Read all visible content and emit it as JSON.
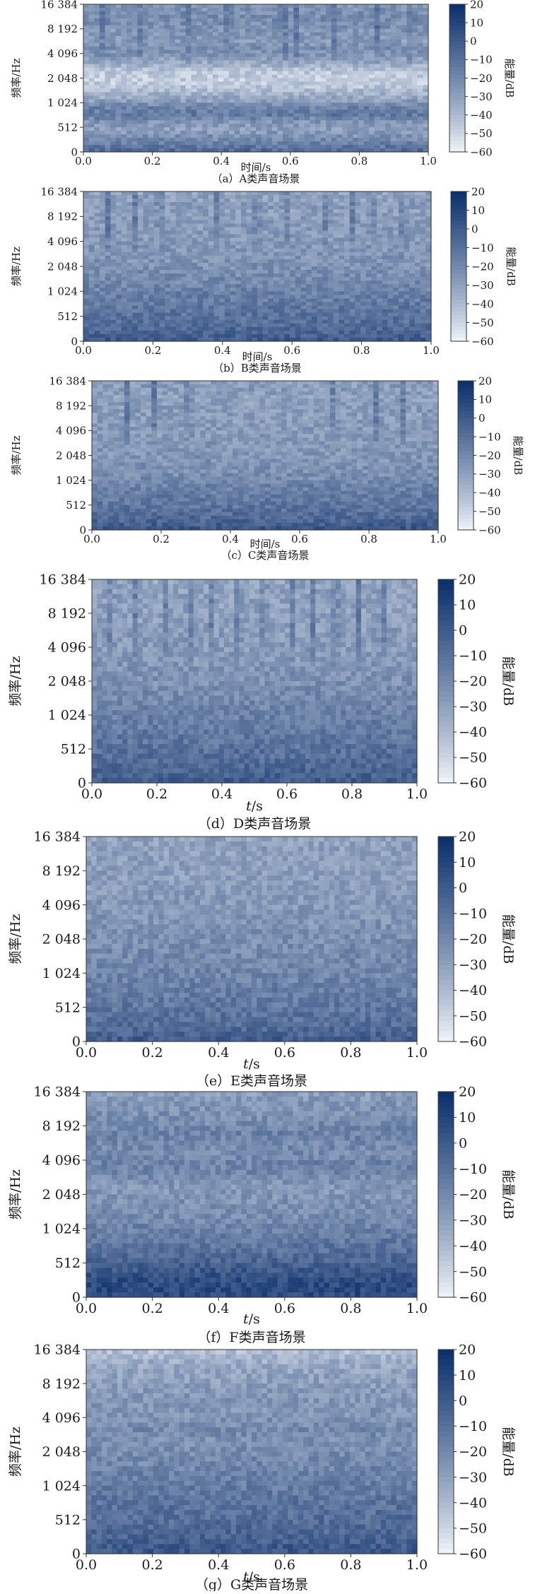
{
  "figure": {
    "panels": [
      {
        "id": "a",
        "caption": "（a）A类声音场景",
        "xlabel": "时间/s",
        "ylabel": "频率/Hz",
        "cbar_label": "能量/dB"
      },
      {
        "id": "b",
        "caption": "（b）B类声音场景",
        "xlabel": "时间/s",
        "ylabel": "频率/Hz",
        "cbar_label": "能量/dB"
      },
      {
        "id": "c",
        "caption": "（c）C类声音场景",
        "xlabel": "时间/s",
        "ylabel": "频率/Hz",
        "cbar_label": "能量/dB"
      },
      {
        "id": "d",
        "caption": "（d）D类声音场景",
        "xlabel": "t/s",
        "ylabel": "频率/Hz",
        "cbar_label": "能量/dB"
      },
      {
        "id": "e",
        "caption": "（e）E类声音场景",
        "xlabel": "t/s",
        "ylabel": "频率/Hz",
        "cbar_label": "能量/dB"
      },
      {
        "id": "f",
        "caption": "（f）F类声音场景",
        "xlabel": "t/s",
        "ylabel": "频率/Hz",
        "cbar_label": "能量/dB"
      },
      {
        "id": "g",
        "caption": "（g）G类声音场景",
        "xlabel": "t/s",
        "ylabel": "频率/Hz",
        "cbar_label": "能量/dB"
      }
    ]
  },
  "chart_data": [
    {
      "type": "heatmap",
      "panel": "a",
      "caption": "（a）A类声音场景",
      "xlabel": "时间/s",
      "ylabel": "频率/Hz",
      "colorbar_label": "能量/dB",
      "xlim": [
        0.0,
        1.0
      ],
      "x_ticks": [
        "0.0",
        "0.2",
        "0.4",
        "0.6",
        "0.8",
        "1.0"
      ],
      "y_ticks": [
        "0",
        "512",
        "1 024",
        "2 048",
        "4 096",
        "8 192",
        "16 384"
      ],
      "y_scale": "log-like (octave ticks)",
      "colorbar_range": [
        -60,
        20
      ],
      "colorbar_ticks": [
        "20",
        "10",
        "0",
        "−10",
        "−20",
        "−30",
        "−40",
        "−50",
        "−60"
      ],
      "colormap": "Blues",
      "colormap_light": "#f3f7fc",
      "colormap_dark": "#0b2f6b",
      "energy_profile_dB": [
        -6,
        -16,
        -24,
        -30,
        -26,
        -14,
        -18,
        -30,
        -38,
        -46,
        -48,
        -44,
        -34,
        -26,
        -22,
        -28,
        -26,
        -24,
        -22,
        -24,
        -26
      ],
      "transients_x": [
        0.06,
        0.17,
        0.3,
        0.42,
        0.58,
        0.62,
        0.73,
        0.85,
        0.95
      ]
    },
    {
      "type": "heatmap",
      "panel": "b",
      "caption": "（b）B类声音场景",
      "xlabel": "时间/s",
      "ylabel": "频率/Hz",
      "colorbar_label": "能量/dB",
      "xlim": [
        0.0,
        1.0
      ],
      "x_ticks": [
        "0.0",
        "0.2",
        "0.4",
        "0.6",
        "0.8",
        "1.0"
      ],
      "y_ticks": [
        "0",
        "512",
        "1 024",
        "2 048",
        "4 096",
        "8 192",
        "16 384"
      ],
      "y_scale": "log-like (octave ticks)",
      "colorbar_range": [
        -60,
        20
      ],
      "colorbar_ticks": [
        "20",
        "10",
        "0",
        "−10",
        "−20",
        "−30",
        "−40",
        "−50",
        "−60"
      ],
      "colormap": "Blues",
      "colormap_light": "#f3f7fc",
      "colormap_dark": "#0b2f6b",
      "energy_profile_dB": [
        0,
        -4,
        -8,
        -10,
        -12,
        -14,
        -16,
        -18,
        -20,
        -22,
        -24,
        -25,
        -26,
        -27,
        -28,
        -28,
        -28,
        -30,
        -28,
        -30,
        -32
      ],
      "transients_x": [
        0.07,
        0.15,
        0.22,
        0.38,
        0.5,
        0.58,
        0.7,
        0.77,
        0.83,
        0.92
      ]
    },
    {
      "type": "heatmap",
      "panel": "c",
      "caption": "（c）C类声音场景",
      "xlabel": "时间/s",
      "ylabel": "频率/Hz",
      "colorbar_label": "能量/dB",
      "xlim": [
        0.0,
        1.0
      ],
      "x_ticks": [
        "0.0",
        "0.2",
        "0.4",
        "0.6",
        "0.8",
        "1.0"
      ],
      "y_ticks": [
        "0",
        "512",
        "1 024",
        "2 048",
        "4 096",
        "8 192",
        "16 384"
      ],
      "y_scale": "log-like (octave ticks)",
      "colorbar_range": [
        -60,
        20
      ],
      "colorbar_ticks": [
        "20",
        "10",
        "0",
        "−10",
        "−20",
        "−30",
        "−40",
        "−50",
        "−60"
      ],
      "colormap": "Blues",
      "colormap_light": "#f3f7fc",
      "colormap_dark": "#0b2f6b",
      "energy_profile_dB": [
        2,
        -4,
        -8,
        -12,
        -14,
        -16,
        -18,
        -22,
        -24,
        -24,
        -26,
        -26,
        -27,
        -28,
        -28,
        -29,
        -28,
        -30,
        -30,
        -28,
        -30
      ],
      "transients_x": [
        0.1,
        0.18,
        0.28,
        0.7,
        0.82,
        0.9
      ]
    },
    {
      "type": "heatmap",
      "panel": "d",
      "caption": "（d）D类声音场景",
      "xlabel": "t/s",
      "ylabel": "频率/Hz",
      "colorbar_label": "能量/dB",
      "xlim": [
        0.0,
        1.0
      ],
      "x_ticks": [
        "0.0",
        "0.2",
        "0.4",
        "0.6",
        "0.8",
        "1.0"
      ],
      "y_ticks": [
        "0",
        "512",
        "1 024",
        "2 048",
        "4 096",
        "8 192",
        "16 384"
      ],
      "y_scale": "log-like (octave ticks)",
      "colorbar_range": [
        -60,
        20
      ],
      "colorbar_ticks": [
        "20",
        "10",
        "0",
        "−10",
        "−20",
        "−30",
        "−40",
        "−50",
        "−60"
      ],
      "colormap": "Blues",
      "colormap_light": "#f3f7fc",
      "colormap_dark": "#0b2f6b",
      "energy_profile_dB": [
        0,
        -4,
        -8,
        -10,
        -12,
        -14,
        -16,
        -18,
        -20,
        -22,
        -24,
        -25,
        -26,
        -28,
        -28,
        -29,
        -30,
        -30,
        -30,
        -31,
        -32
      ],
      "transients_x": [
        0.06,
        0.13,
        0.23,
        0.3,
        0.37,
        0.45,
        0.53,
        0.62,
        0.68,
        0.75,
        0.82,
        0.9
      ]
    },
    {
      "type": "heatmap",
      "panel": "e",
      "caption": "（e）E类声音场景",
      "xlabel": "t/s",
      "ylabel": "频率/Hz",
      "colorbar_label": "能量/dB",
      "xlim": [
        0.0,
        1.0
      ],
      "x_ticks": [
        "0.0",
        "0.2",
        "0.4",
        "0.6",
        "0.8",
        "1.0"
      ],
      "y_ticks": [
        "0",
        "512",
        "1 024",
        "2 048",
        "4 096",
        "8 192",
        "16 384"
      ],
      "y_scale": "log-like (octave ticks)",
      "colorbar_range": [
        -60,
        20
      ],
      "colorbar_ticks": [
        "20",
        "10",
        "0",
        "−10",
        "−20",
        "−30",
        "−40",
        "−50",
        "−60"
      ],
      "colormap": "Blues",
      "colormap_light": "#f3f7fc",
      "colormap_dark": "#0b2f6b",
      "energy_profile_dB": [
        0,
        -6,
        -10,
        -12,
        -14,
        -16,
        -18,
        -20,
        -21,
        -22,
        -23,
        -24,
        -26,
        -27,
        -27,
        -28,
        -29,
        -29,
        -30,
        -30,
        -32
      ],
      "transients_x": []
    },
    {
      "type": "heatmap",
      "panel": "f",
      "caption": "（f）F类声音场景",
      "xlabel": "t/s",
      "ylabel": "频率/Hz",
      "colorbar_label": "能量/dB",
      "xlim": [
        0.0,
        1.0
      ],
      "x_ticks": [
        "0.0",
        "0.2",
        "0.4",
        "0.6",
        "0.8",
        "1.0"
      ],
      "y_ticks": [
        "0",
        "512",
        "1 024",
        "2 048",
        "4 096",
        "8 192",
        "16 384"
      ],
      "y_scale": "log-like (octave ticks)",
      "colorbar_range": [
        -60,
        20
      ],
      "colorbar_ticks": [
        "20",
        "10",
        "0",
        "−10",
        "−20",
        "−30",
        "−40",
        "−50",
        "−60"
      ],
      "colormap": "Blues",
      "colormap_light": "#f3f7fc",
      "colormap_dark": "#0b2f6b",
      "energy_profile_dB": [
        6,
        8,
        4,
        -2,
        -8,
        -12,
        -16,
        -19,
        -22,
        -24,
        -26,
        -26,
        -20,
        -18,
        -22,
        -20,
        -18,
        -22,
        -24,
        -26,
        -30
      ],
      "transients_x": []
    },
    {
      "type": "heatmap",
      "panel": "g",
      "caption": "（g）G类声音场景",
      "xlabel": "t/s",
      "ylabel": "频率/Hz",
      "colorbar_label": "能量/dB",
      "xlim": [
        0.0,
        1.0
      ],
      "x_ticks": [
        "0.0",
        "0.2",
        "0.4",
        "0.6",
        "0.8",
        "1.0"
      ],
      "y_ticks": [
        "0",
        "512",
        "1 024",
        "2 048",
        "4 096",
        "8 192",
        "16 384"
      ],
      "y_scale": "log-like (octave ticks)",
      "colorbar_range": [
        -60,
        20
      ],
      "colorbar_ticks": [
        "20",
        "10",
        "0",
        "−10",
        "−20",
        "−30",
        "−40",
        "−50",
        "−60"
      ],
      "colormap": "Blues",
      "colormap_light": "#f3f7fc",
      "colormap_dark": "#0b2f6b",
      "energy_profile_dB": [
        2,
        -2,
        -6,
        -8,
        -10,
        -12,
        -14,
        -16,
        -18,
        -20,
        -22,
        -24,
        -20,
        -24,
        -26,
        -26,
        -28,
        -30,
        -32,
        -36,
        -44
      ],
      "transients_x": []
    }
  ]
}
